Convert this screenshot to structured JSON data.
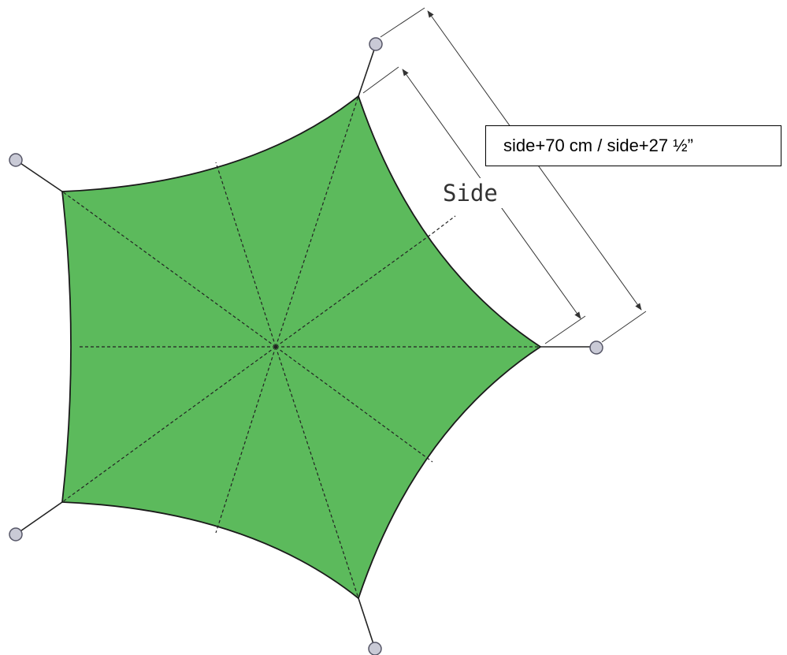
{
  "labels": {
    "side": "Side",
    "dimension": "side+70 cm / side+27 ½”"
  },
  "colors": {
    "canvas_fill": "#5cba5c",
    "outline": "#1a1a1a",
    "seam": "#222222",
    "anchor_fill": "#c9cad6",
    "anchor_stroke": "#555566"
  }
}
